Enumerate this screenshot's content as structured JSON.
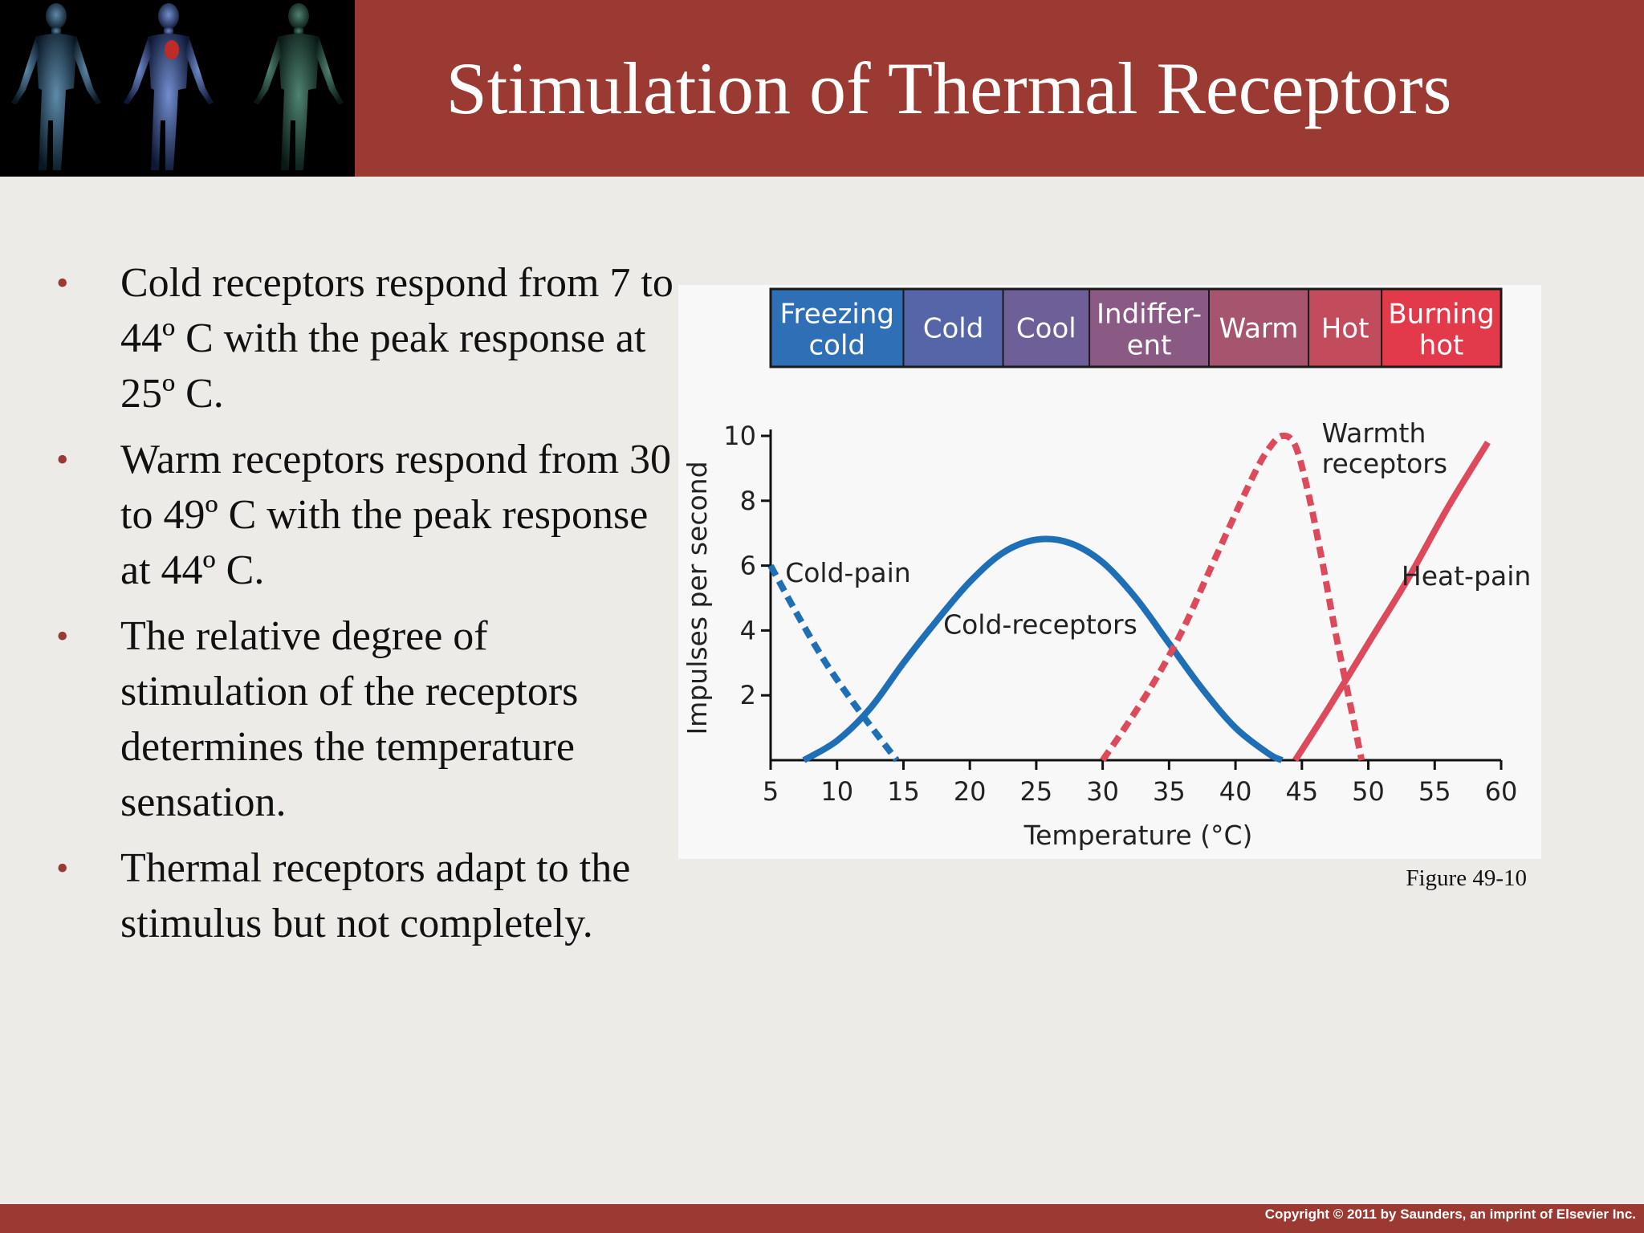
{
  "slide": {
    "title": "Stimulation of Thermal Receptors",
    "bullets": [
      "Cold receptors respond from 7 to 44º C with the peak response at 25º C.",
      "Warm receptors respond from 30 to 49º C with the peak response at 44º C.",
      "The relative degree of stimulation of the receptors determines the temperature sensation.",
      "Thermal receptors adapt to the stimulus but not completely."
    ],
    "bullet_marker": "•",
    "caption": "Figure 49-10",
    "copyright": "Copyright © 2011 by Saunders, an imprint of Elsevier Inc.",
    "header_image_icon": "human-anatomy-figures"
  },
  "colors": {
    "header": "#9b3a32",
    "cold_blue": "#1e6fb5",
    "warm_red": "#dc4a5c"
  },
  "chart_data": {
    "type": "line",
    "xlabel": "Temperature (°C)",
    "ylabel": "Impulses per second",
    "xlim": [
      5,
      60
    ],
    "ylim": [
      0,
      10
    ],
    "xticks": [
      5,
      10,
      15,
      20,
      25,
      30,
      35,
      40,
      45,
      50,
      55,
      60
    ],
    "yticks": [
      2,
      4,
      6,
      8,
      10
    ],
    "sensation_bands": [
      {
        "label": [
          "Freezing",
          "cold"
        ],
        "from": 5,
        "to": 15,
        "color": "#2e6fb6"
      },
      {
        "label": [
          "Cold"
        ],
        "from": 15,
        "to": 22.5,
        "color": "#5565a7"
      },
      {
        "label": [
          "Cool"
        ],
        "from": 22.5,
        "to": 29,
        "color": "#6e5f98"
      },
      {
        "label": [
          "Indiffer-",
          "ent"
        ],
        "from": 29,
        "to": 38,
        "color": "#8a5a84"
      },
      {
        "label": [
          "Warm"
        ],
        "from": 38,
        "to": 45.5,
        "color": "#a7546f"
      },
      {
        "label": [
          "Hot"
        ],
        "from": 45.5,
        "to": 51,
        "color": "#c24c5c"
      },
      {
        "label": [
          "Burning",
          "hot"
        ],
        "from": 51,
        "to": 60,
        "color": "#e23a4a"
      }
    ],
    "series": [
      {
        "name": "Cold-pain",
        "style": "dashed",
        "color": "#1e6fb5",
        "x": [
          5,
          7,
          9,
          11,
          13,
          14.5
        ],
        "y": [
          6,
          4.5,
          3.1,
          1.9,
          0.8,
          0
        ]
      },
      {
        "name": "Cold-receptors",
        "style": "solid",
        "color": "#1e6fb5",
        "x": [
          7.5,
          10,
          12.5,
          15,
          17.5,
          20,
          22.5,
          25,
          27.5,
          30,
          32.5,
          35,
          37.5,
          40,
          42.5,
          43.5
        ],
        "y": [
          0,
          0.6,
          1.6,
          3,
          4.3,
          5.5,
          6.4,
          6.8,
          6.7,
          6.1,
          5,
          3.6,
          2.2,
          1,
          0.2,
          0
        ]
      },
      {
        "name": "Warmth receptors",
        "style": "dashed",
        "color": "#dc4a5c",
        "x": [
          30,
          32,
          34,
          36,
          38,
          40,
          41.5,
          42.5,
          43.5,
          44.5,
          45.5,
          46.5,
          47.5,
          48.5,
          49.5
        ],
        "y": [
          0,
          1.2,
          2.5,
          4,
          5.8,
          7.6,
          8.9,
          9.6,
          10,
          9.7,
          8.2,
          6.2,
          4,
          2,
          0
        ]
      },
      {
        "name": "Heat-pain",
        "style": "solid",
        "color": "#dc4a5c",
        "x": [
          44.5,
          47,
          50,
          53,
          56,
          59
        ],
        "y": [
          0,
          1.6,
          3.6,
          5.6,
          7.8,
          9.8
        ]
      }
    ],
    "annotations": [
      {
        "text": [
          "Cold-pain"
        ],
        "x": 6.1,
        "y": 5.5
      },
      {
        "text": [
          "Cold-receptors"
        ],
        "x": 18,
        "y": 3.9
      },
      {
        "text": [
          "Warmth",
          "receptors"
        ],
        "x": 46.5,
        "y": 9.8
      },
      {
        "text": [
          "Heat-pain"
        ],
        "x": 52.5,
        "y": 5.4
      }
    ]
  }
}
